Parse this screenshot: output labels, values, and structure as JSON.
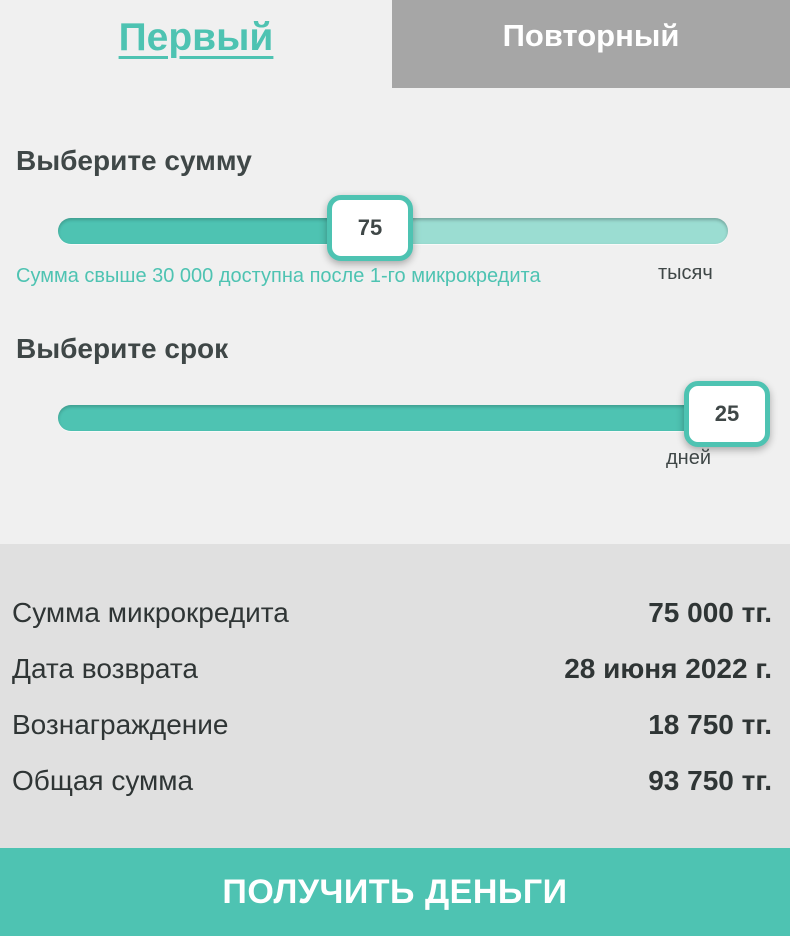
{
  "tabs": {
    "first": "Первый",
    "repeat": "Повторный"
  },
  "amount": {
    "heading": "Выберите сумму",
    "value": "75",
    "unit": "тысяч",
    "hint": "Сумма свыше 30 000 доступна после 1-го микрокредита",
    "level_fraction": 0.47
  },
  "term": {
    "heading": "Выберите срок",
    "value": "25",
    "unit": "дней",
    "level_fraction": 1.0
  },
  "summary": {
    "rows": [
      {
        "label": "Сумма микрокредита",
        "value": "75 000 тг."
      },
      {
        "label": "Дата возврата",
        "value": "28 июня 2022 г."
      },
      {
        "label": "Вознаграждение",
        "value": "18 750 тг."
      },
      {
        "label": "Общая сумма",
        "value": "93 750 тг."
      }
    ]
  },
  "cta": {
    "label": "ПОЛУЧИТЬ ДЕНЬГИ"
  },
  "colors": {
    "accent": "#4ec3b2",
    "tab_inactive": "#a6a6a6",
    "summary_bg": "#e0e0e0"
  }
}
